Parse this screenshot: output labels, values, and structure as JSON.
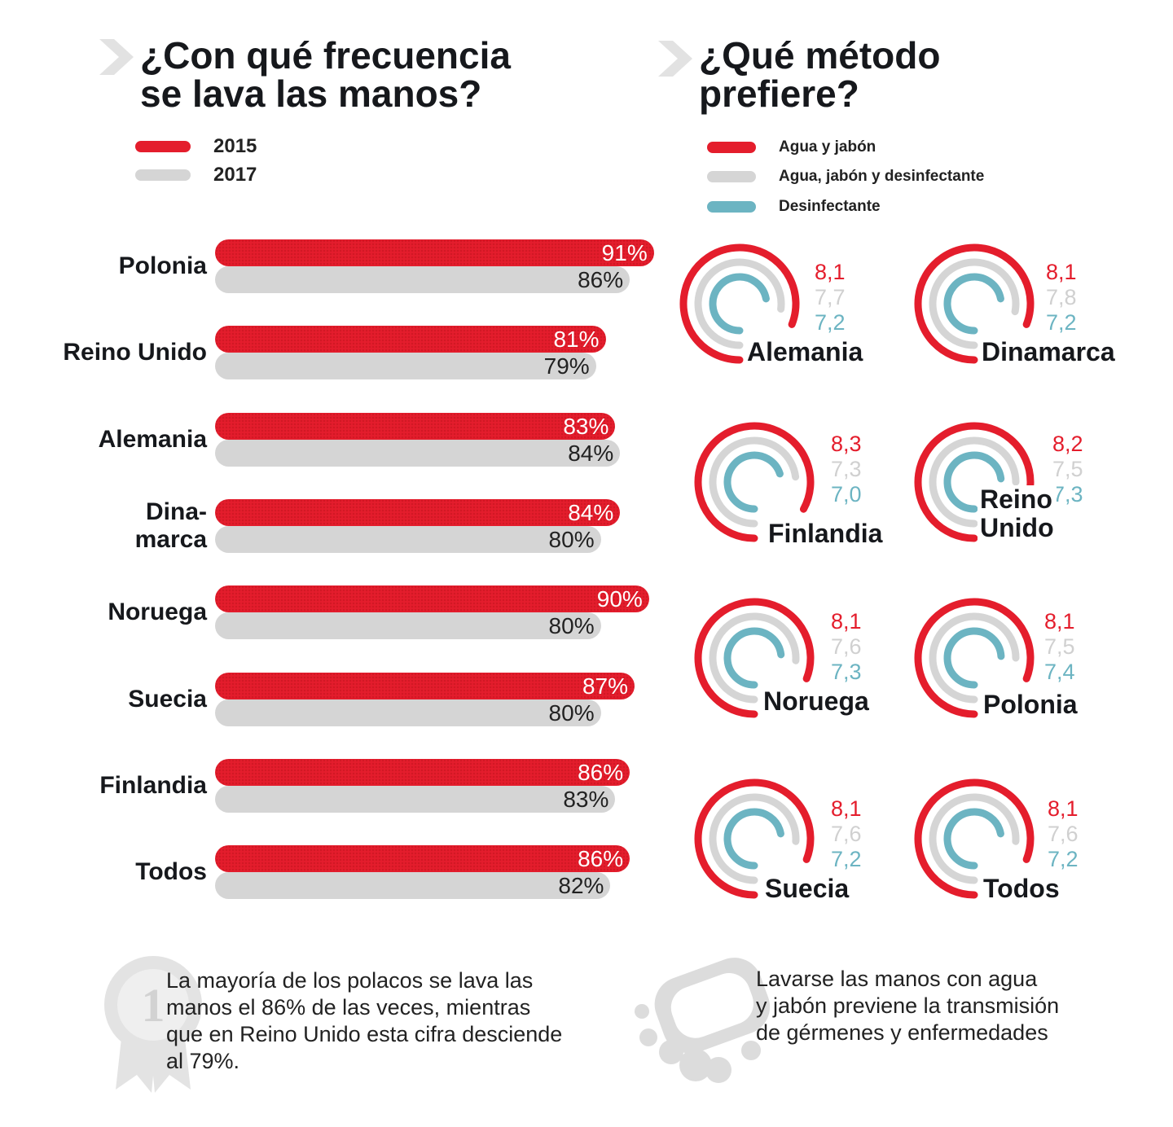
{
  "left": {
    "title_line1": "¿Con qué frecuencia",
    "title_line2": "se lava las manos?",
    "legend": [
      {
        "label": "2015",
        "color": "#e41d2c"
      },
      {
        "label": "2017",
        "color": "#d5d5d5"
      }
    ]
  },
  "right": {
    "title_line1": "¿Qué método",
    "title_line2": "prefiere?",
    "legend": [
      {
        "label": "Agua y jabón",
        "color": "#e41d2c"
      },
      {
        "label": "Agua, jabón y desinfectante",
        "color": "#d5d5d5"
      },
      {
        "label": "Desinfectante",
        "color": "#6cb4c2"
      }
    ]
  },
  "chart_data": [
    {
      "type": "bar",
      "orientation": "horizontal",
      "title": "¿Con qué frecuencia se lava las manos?",
      "categories": [
        "Polonia",
        "Reino Unido",
        "Alemania",
        "Dina-marca",
        "Noruega",
        "Suecia",
        "Finlandia",
        "Todos"
      ],
      "category_lines": [
        [
          "Polonia"
        ],
        [
          "Reino Unido"
        ],
        [
          "Alemania"
        ],
        [
          "Dina-",
          "marca"
        ],
        [
          "Noruega"
        ],
        [
          "Suecia"
        ],
        [
          "Finlandia"
        ],
        [
          "Todos"
        ]
      ],
      "series": [
        {
          "name": "2015",
          "color": "#e41d2c",
          "values": [
            91,
            81,
            83,
            84,
            90,
            87,
            86,
            86
          ],
          "labels": [
            "91%",
            "81%",
            "83%",
            "84%",
            "90%",
            "87%",
            "86%",
            "86%"
          ]
        },
        {
          "name": "2017",
          "color": "#d5d5d5",
          "values": [
            86,
            79,
            84,
            80,
            80,
            80,
            83,
            82
          ],
          "labels": [
            "86%",
            "79%",
            "84%",
            "80%",
            "80%",
            "80%",
            "83%",
            "82%"
          ]
        }
      ],
      "legend": "top-left"
    },
    {
      "type": "radial-bar",
      "title": "¿Qué método prefiere?",
      "scale_max": 10,
      "series_names": [
        "Agua y jabón",
        "Agua, jabón y desinfectante",
        "Desinfectante"
      ],
      "series_colors": [
        "#e41d2c",
        "#d5d5d5",
        "#6cb4c2"
      ],
      "items": [
        {
          "country": [
            "Alemania"
          ],
          "values": [
            8.1,
            7.7,
            7.2
          ],
          "labels": [
            "8,1",
            "7,7",
            "7,2"
          ]
        },
        {
          "country": [
            "Dinamarca"
          ],
          "values": [
            8.1,
            7.8,
            7.2
          ],
          "labels": [
            "8,1",
            "7,8",
            "7,2"
          ]
        },
        {
          "country": [
            "Finlandia"
          ],
          "values": [
            8.3,
            7.3,
            7.0
          ],
          "labels": [
            "8,3",
            "7,3",
            "7,0"
          ]
        },
        {
          "country": [
            "Reino",
            "Unido"
          ],
          "values": [
            8.2,
            7.5,
            7.3
          ],
          "labels": [
            "8,2",
            "7,5",
            "7,3"
          ]
        },
        {
          "country": [
            "Noruega"
          ],
          "values": [
            8.1,
            7.6,
            7.3
          ],
          "labels": [
            "8,1",
            "7,6",
            "7,3"
          ]
        },
        {
          "country": [
            "Polonia"
          ],
          "values": [
            8.1,
            7.5,
            7.4
          ],
          "labels": [
            "8,1",
            "7,5",
            "7,4"
          ]
        },
        {
          "country": [
            "Suecia"
          ],
          "values": [
            8.1,
            7.6,
            7.2
          ],
          "labels": [
            "8,1",
            "7,6",
            "7,2"
          ]
        },
        {
          "country": [
            "Todos"
          ],
          "values": [
            8.1,
            7.6,
            7.2
          ],
          "labels": [
            "8,1",
            "7,6",
            "7,2"
          ]
        }
      ]
    }
  ],
  "notes": {
    "left": [
      "La mayoría de los polacos se lava las",
      "manos el 86% de las veces, mientras",
      "que en Reino Unido esta cifra desciende",
      "al 79%."
    ],
    "right": [
      "Lavarse las manos con agua",
      "y jabón previene la transmisión",
      "de gérmenes y enfermedades"
    ]
  },
  "icons": {
    "left_title": "chevron-right-icon",
    "right_title": "chevron-right-icon",
    "left_note": "medal-icon",
    "right_note": "soap-icon"
  }
}
